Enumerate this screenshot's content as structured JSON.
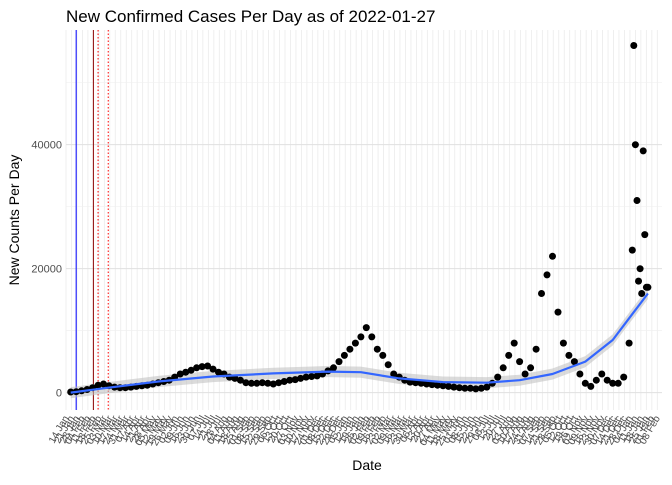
{
  "chart_data": {
    "type": "scatter",
    "title": "New Confirmed Cases Per Day as of 2022-01-27",
    "xlabel": "Date",
    "ylabel": "New Counts Per Day",
    "ylim": [
      -2800,
      58500
    ],
    "y_ticks": [
      0,
      20000,
      40000
    ],
    "xlim": [
      "2020-01-14",
      "2022-02-14"
    ],
    "grid": true,
    "legend": "none",
    "x_tick_format": "%d %b",
    "x_tick_step_days": 7,
    "x_tick_rotation_deg": -60,
    "point_color": "#000000",
    "smooth_line_color": "#3366ff",
    "smooth_band_color": "#bebebe",
    "vertical_lines": [
      {
        "date": "2020-01-27",
        "color": "#0000ff",
        "style": "solid"
      },
      {
        "date": "2020-02-18",
        "color": "#8b0000",
        "style": "solid"
      },
      {
        "date": "2020-02-24",
        "color": "#ff0000",
        "style": "dotted"
      },
      {
        "date": "2020-03-08",
        "color": "#ff0000",
        "style": "dotted"
      }
    ],
    "series": [
      {
        "points": [
          [
            "2020-01-20",
            100
          ],
          [
            "2020-01-27",
            150
          ],
          [
            "2020-02-03",
            300
          ],
          [
            "2020-02-10",
            500
          ],
          [
            "2020-02-17",
            800
          ],
          [
            "2020-02-24",
            1200
          ],
          [
            "2020-03-02",
            1400
          ],
          [
            "2020-03-09",
            1100
          ],
          [
            "2020-03-16",
            900
          ],
          [
            "2020-03-23",
            800
          ],
          [
            "2020-03-30",
            800
          ],
          [
            "2020-04-06",
            900
          ],
          [
            "2020-04-13",
            1000
          ],
          [
            "2020-04-20",
            1100
          ],
          [
            "2020-04-27",
            1200
          ],
          [
            "2020-05-04",
            1400
          ],
          [
            "2020-05-11",
            1600
          ],
          [
            "2020-05-18",
            1800
          ],
          [
            "2020-05-25",
            2000
          ],
          [
            "2020-06-01",
            2500
          ],
          [
            "2020-06-08",
            3000
          ],
          [
            "2020-06-15",
            3300
          ],
          [
            "2020-06-22",
            3600
          ],
          [
            "2020-06-29",
            4000
          ],
          [
            "2020-07-06",
            4200
          ],
          [
            "2020-07-13",
            4300
          ],
          [
            "2020-07-20",
            3800
          ],
          [
            "2020-07-27",
            3300
          ],
          [
            "2020-08-03",
            3000
          ],
          [
            "2020-08-10",
            2500
          ],
          [
            "2020-08-17",
            2300
          ],
          [
            "2020-08-24",
            2000
          ],
          [
            "2020-08-31",
            1600
          ],
          [
            "2020-09-07",
            1500
          ],
          [
            "2020-09-14",
            1500
          ],
          [
            "2020-09-21",
            1600
          ],
          [
            "2020-09-28",
            1500
          ],
          [
            "2020-10-05",
            1400
          ],
          [
            "2020-10-12",
            1600
          ],
          [
            "2020-10-19",
            1800
          ],
          [
            "2020-10-26",
            2000
          ],
          [
            "2020-11-02",
            2100
          ],
          [
            "2020-11-09",
            2300
          ],
          [
            "2020-11-16",
            2500
          ],
          [
            "2020-11-23",
            2600
          ],
          [
            "2020-11-30",
            2700
          ],
          [
            "2020-12-07",
            3000
          ],
          [
            "2020-12-14",
            3500
          ],
          [
            "2020-12-21",
            4000
          ],
          [
            "2020-12-28",
            5000
          ],
          [
            "2021-01-04",
            6000
          ],
          [
            "2021-01-11",
            7000
          ],
          [
            "2021-01-18",
            8000
          ],
          [
            "2021-01-25",
            9000
          ],
          [
            "2021-02-01",
            10500
          ],
          [
            "2021-02-08",
            9000
          ],
          [
            "2021-02-15",
            7000
          ],
          [
            "2021-02-22",
            6000
          ],
          [
            "2021-03-01",
            4500
          ],
          [
            "2021-03-08",
            3000
          ],
          [
            "2021-03-15",
            2500
          ],
          [
            "2021-03-22",
            2000
          ],
          [
            "2021-03-29",
            1700
          ],
          [
            "2021-04-05",
            1600
          ],
          [
            "2021-04-12",
            1500
          ],
          [
            "2021-04-19",
            1400
          ],
          [
            "2021-04-26",
            1300
          ],
          [
            "2021-05-03",
            1200
          ],
          [
            "2021-05-10",
            1100
          ],
          [
            "2021-05-17",
            1000
          ],
          [
            "2021-05-24",
            900
          ],
          [
            "2021-05-31",
            800
          ],
          [
            "2021-06-07",
            700
          ],
          [
            "2021-06-14",
            700
          ],
          [
            "2021-06-21",
            600
          ],
          [
            "2021-06-28",
            700
          ],
          [
            "2021-07-05",
            900
          ],
          [
            "2021-07-12",
            1500
          ],
          [
            "2021-07-19",
            2500
          ],
          [
            "2021-07-26",
            4000
          ],
          [
            "2021-08-02",
            6000
          ],
          [
            "2021-08-09",
            8000
          ],
          [
            "2021-08-16",
            5000
          ],
          [
            "2021-08-23",
            3000
          ],
          [
            "2021-08-30",
            4000
          ],
          [
            "2021-09-06",
            7000
          ],
          [
            "2021-09-13",
            16000
          ],
          [
            "2021-09-20",
            19000
          ],
          [
            "2021-09-27",
            22000
          ],
          [
            "2021-10-04",
            13000
          ],
          [
            "2021-10-11",
            8000
          ],
          [
            "2021-10-18",
            6000
          ],
          [
            "2021-10-25",
            5000
          ],
          [
            "2021-11-01",
            3000
          ],
          [
            "2021-11-08",
            1500
          ],
          [
            "2021-11-15",
            1000
          ],
          [
            "2021-11-22",
            2000
          ],
          [
            "2021-11-29",
            3000
          ],
          [
            "2021-12-06",
            2000
          ],
          [
            "2021-12-13",
            1500
          ],
          [
            "2021-12-20",
            1500
          ],
          [
            "2021-12-27",
            2500
          ],
          [
            "2022-01-03",
            8000
          ],
          [
            "2022-01-07",
            23000
          ],
          [
            "2022-01-09",
            56000
          ],
          [
            "2022-01-11",
            40000
          ],
          [
            "2022-01-13",
            31000
          ],
          [
            "2022-01-15",
            18000
          ],
          [
            "2022-01-17",
            20000
          ],
          [
            "2022-01-19",
            16000
          ],
          [
            "2022-01-21",
            39000
          ],
          [
            "2022-01-23",
            25500
          ],
          [
            "2022-01-25",
            17000
          ],
          [
            "2022-01-27",
            17000
          ]
        ]
      }
    ],
    "smooth_line": [
      [
        "2020-01-20",
        0
      ],
      [
        "2020-03-02",
        700
      ],
      [
        "2020-05-11",
        1800
      ],
      [
        "2020-07-20",
        2600
      ],
      [
        "2020-10-05",
        3100
      ],
      [
        "2020-12-14",
        3400
      ],
      [
        "2021-01-25",
        3300
      ],
      [
        "2021-03-15",
        2300
      ],
      [
        "2021-05-10",
        1700
      ],
      [
        "2021-07-05",
        1600
      ],
      [
        "2021-08-16",
        2000
      ],
      [
        "2021-09-27",
        3000
      ],
      [
        "2021-11-08",
        5000
      ],
      [
        "2021-12-13",
        8500
      ],
      [
        "2022-01-03",
        12000
      ],
      [
        "2022-01-27",
        16000
      ]
    ]
  }
}
